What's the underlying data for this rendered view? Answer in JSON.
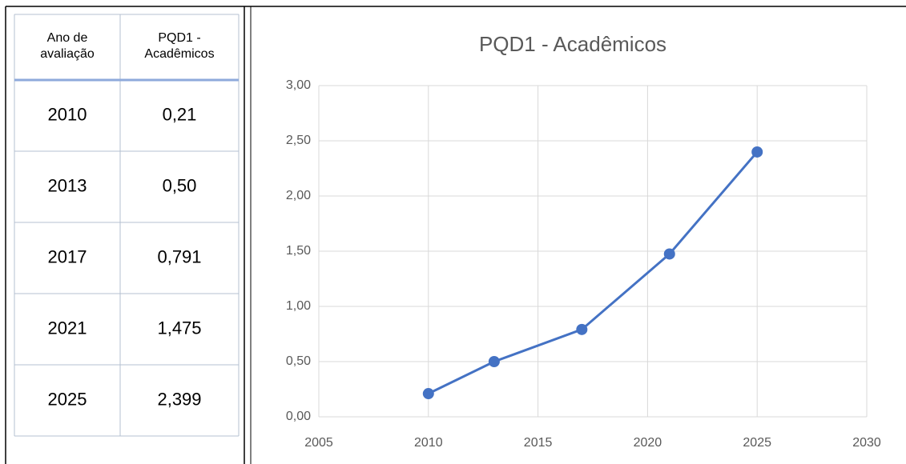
{
  "table": {
    "header": [
      "Ano de\navaliação",
      "PQD1 -\nAcadêmicos"
    ],
    "rows": [
      [
        "2010",
        "0,21"
      ],
      [
        "2013",
        "0,50"
      ],
      [
        "2017",
        "0,791"
      ],
      [
        "2021",
        "1,475"
      ],
      [
        "2025",
        "2,399"
      ]
    ]
  },
  "chart_data": {
    "type": "line",
    "title": "PQD1 - Acadêmicos",
    "x": [
      2010,
      2013,
      2017,
      2021,
      2025
    ],
    "series": [
      {
        "name": "PQD1 - Acadêmicos",
        "color": "#4472c4",
        "values": [
          0.21,
          0.5,
          0.791,
          1.475,
          2.399
        ]
      }
    ],
    "xlim": [
      2005,
      2030
    ],
    "xticks": [
      2005,
      2010,
      2015,
      2020,
      2025,
      2030
    ],
    "ylim": [
      0,
      3
    ],
    "yticks": [
      {
        "value": 0,
        "label": "0,00"
      },
      {
        "value": 0.5,
        "label": "0,50"
      },
      {
        "value": 1,
        "label": "1,00"
      },
      {
        "value": 1.5,
        "label": "1,50"
      },
      {
        "value": 2,
        "label": "2,00"
      },
      {
        "value": 2.5,
        "label": "2,50"
      },
      {
        "value": 3,
        "label": "3,00"
      }
    ],
    "grid": true
  }
}
